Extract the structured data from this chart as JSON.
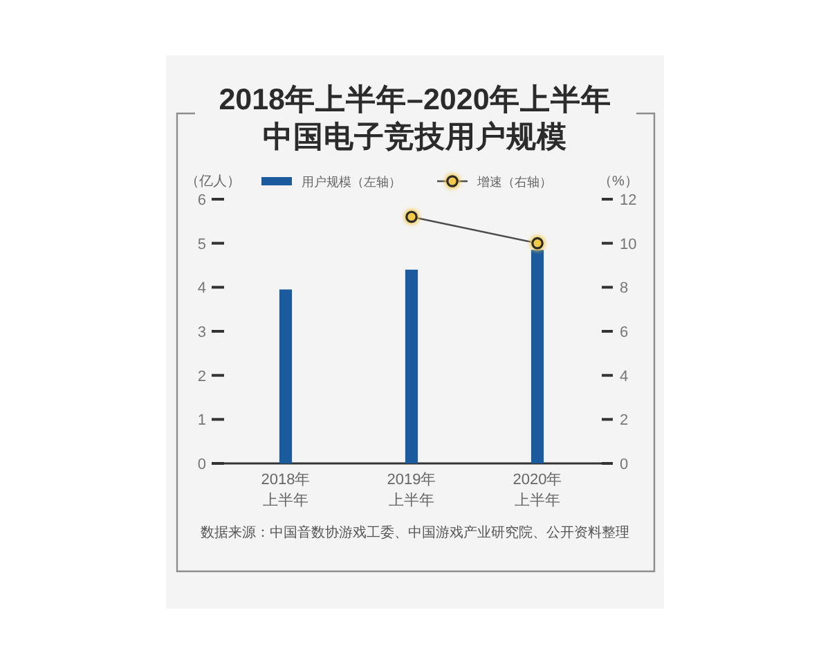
{
  "chart_data": {
    "type": "bar",
    "title": "2018年上半年–2020年上半年中国电子竞技用户规模",
    "ylabel": "（亿人）",
    "y2label": "（%）",
    "categories": [
      "2018年上半年",
      "2019年上半年",
      "2020年上半年"
    ],
    "series": [
      {
        "name": "用户规模（左轴）",
        "color": "#1b5a9c",
        "values": [
          3.95,
          4.4,
          4.85
        ]
      },
      {
        "name": "增速（右轴）",
        "type": "line",
        "axis": "y2",
        "color": "#4d4d4d",
        "values": [
          null,
          11.2,
          10.0
        ]
      }
    ],
    "ylim": [
      0,
      6
    ],
    "yticks": [
      0,
      1,
      2,
      3,
      4,
      5,
      6
    ],
    "y2lim": [
      0,
      12
    ],
    "y2ticks": [
      0,
      2,
      4,
      6,
      8,
      10,
      12
    ],
    "legend": "top",
    "marker": "circle",
    "annotations": [
      "数据来源：中国音数协游戏工委、中国游戏产业研究院、公开资料整理"
    ]
  }
}
